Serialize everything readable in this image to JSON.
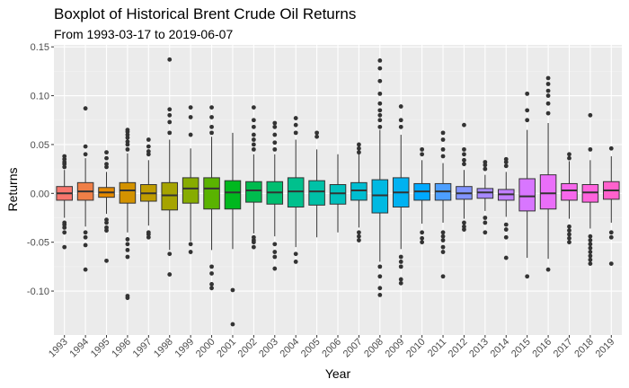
{
  "chart_data": {
    "type": "boxplot",
    "title": "Boxplot of Historical Brent Crude Oil Returns",
    "subtitle": "From 1993-03-17 to 2019-06-07",
    "xlabel": "Year",
    "ylabel": "Returns",
    "ylim": [
      -0.145,
      0.152
    ],
    "yticks": [
      -0.1,
      -0.05,
      0.0,
      0.05,
      0.1,
      0.15
    ],
    "ytick_labels": [
      "-0.10",
      "-0.05",
      "0.00",
      "0.05",
      "0.10",
      "0.15"
    ],
    "grid": true,
    "legend": "none",
    "categories": [
      "1993",
      "1994",
      "1995",
      "1996",
      "1997",
      "1998",
      "1999",
      "2000",
      "2001",
      "2002",
      "2003",
      "2004",
      "2005",
      "2006",
      "2007",
      "2008",
      "2009",
      "2010",
      "2011",
      "2012",
      "2013",
      "2014",
      "2015",
      "2016",
      "2017",
      "2018",
      "2019"
    ],
    "boxes": [
      {
        "year": "1993",
        "color": "#F8766D",
        "q1": -0.007,
        "median": 0.0,
        "q3": 0.007,
        "whisker_low": -0.025,
        "whisker_high": 0.024,
        "outliers": [
          -0.055,
          -0.04,
          -0.035,
          -0.032,
          -0.03,
          0.027,
          0.03,
          0.032,
          0.035,
          0.038
        ]
      },
      {
        "year": "1994",
        "color": "#EF7F47",
        "q1": -0.007,
        "median": 0.002,
        "q3": 0.011,
        "whisker_low": -0.034,
        "whisker_high": 0.036,
        "outliers": [
          -0.078,
          -0.053,
          -0.045,
          -0.04,
          0.04,
          0.048,
          0.087
        ]
      },
      {
        "year": "1995",
        "color": "#E38900",
        "q1": -0.004,
        "median": 0.001,
        "q3": 0.006,
        "whisker_low": -0.021,
        "whisker_high": 0.022,
        "outliers": [
          -0.069,
          -0.038,
          -0.035,
          -0.03,
          -0.027,
          0.027,
          0.03,
          0.036,
          0.042
        ]
      },
      {
        "year": "1996",
        "color": "#D39200",
        "q1": -0.01,
        "median": 0.003,
        "q3": 0.011,
        "whisker_low": -0.04,
        "whisker_high": 0.041,
        "outliers": [
          -0.107,
          -0.105,
          -0.065,
          -0.058,
          -0.052,
          -0.047,
          0.045,
          0.05,
          0.053,
          0.057,
          0.06,
          0.063,
          0.065
        ]
      },
      {
        "year": "1997",
        "color": "#BF9C00",
        "q1": -0.008,
        "median": 0.0,
        "q3": 0.009,
        "whisker_low": -0.033,
        "whisker_high": 0.034,
        "outliers": [
          -0.045,
          -0.042,
          -0.04,
          0.04,
          0.043,
          0.048,
          0.055
        ]
      },
      {
        "year": "1998",
        "color": "#A6A400",
        "q1": -0.017,
        "median": -0.002,
        "q3": 0.011,
        "whisker_low": -0.058,
        "whisker_high": 0.055,
        "outliers": [
          -0.083,
          -0.062,
          0.062,
          0.073,
          0.08,
          0.086,
          0.137
        ]
      },
      {
        "year": "1999",
        "color": "#87AC00",
        "q1": -0.01,
        "median": 0.005,
        "q3": 0.016,
        "whisker_low": -0.049,
        "whisker_high": 0.046,
        "outliers": [
          -0.06,
          -0.052,
          0.06,
          0.078,
          0.088
        ]
      },
      {
        "year": "2000",
        "color": "#5AB300",
        "q1": -0.016,
        "median": 0.005,
        "q3": 0.016,
        "whisker_low": -0.058,
        "whisker_high": 0.058,
        "outliers": [
          -0.097,
          -0.093,
          -0.082,
          -0.075,
          0.062,
          0.068,
          0.078,
          0.088
        ]
      },
      {
        "year": "2001",
        "color": "#00B81F",
        "q1": -0.016,
        "median": 0.001,
        "q3": 0.013,
        "whisker_low": -0.057,
        "whisker_high": 0.062,
        "outliers": [
          -0.134,
          -0.099
        ]
      },
      {
        "year": "2002",
        "color": "#00BB4E",
        "q1": -0.009,
        "median": 0.003,
        "q3": 0.012,
        "whisker_low": -0.041,
        "whisker_high": 0.04,
        "outliers": [
          -0.055,
          -0.05,
          -0.048,
          -0.045,
          0.045,
          0.05,
          0.055,
          0.06,
          0.068,
          0.075,
          0.088
        ]
      },
      {
        "year": "2003",
        "color": "#00BE70",
        "q1": -0.011,
        "median": 0.001,
        "q3": 0.012,
        "whisker_low": -0.044,
        "whisker_high": 0.04,
        "outliers": [
          -0.077,
          -0.065,
          -0.06,
          -0.052,
          0.045,
          0.052,
          0.06,
          0.068,
          0.072
        ]
      },
      {
        "year": "2004",
        "color": "#00C08D",
        "q1": -0.014,
        "median": 0.002,
        "q3": 0.016,
        "whisker_low": -0.055,
        "whisker_high": 0.055,
        "outliers": [
          -0.07,
          -0.062,
          0.062,
          0.07,
          0.077
        ]
      },
      {
        "year": "2005",
        "color": "#00C1A7",
        "q1": -0.012,
        "median": 0.002,
        "q3": 0.013,
        "whisker_low": -0.045,
        "whisker_high": 0.045,
        "outliers": [
          0.058,
          0.062
        ]
      },
      {
        "year": "2006",
        "color": "#00C0BD",
        "q1": -0.011,
        "median": 0.0,
        "q3": 0.009,
        "whisker_low": -0.04,
        "whisker_high": 0.04,
        "outliers": []
      },
      {
        "year": "2007",
        "color": "#00BDD1",
        "q1": -0.007,
        "median": 0.003,
        "q3": 0.011,
        "whisker_low": -0.035,
        "whisker_high": 0.04,
        "outliers": [
          -0.048,
          -0.044,
          -0.04,
          0.042,
          0.046,
          0.05
        ]
      },
      {
        "year": "2008",
        "color": "#00B9E2",
        "q1": -0.02,
        "median": -0.002,
        "q3": 0.014,
        "whisker_low": -0.07,
        "whisker_high": 0.065,
        "outliers": [
          -0.104,
          -0.097,
          -0.085,
          -0.075,
          0.068,
          0.075,
          0.08,
          0.085,
          0.092,
          0.102,
          0.115,
          0.128,
          0.136
        ]
      },
      {
        "year": "2009",
        "color": "#00B2F1",
        "q1": -0.014,
        "median": 0.001,
        "q3": 0.016,
        "whisker_low": -0.057,
        "whisker_high": 0.06,
        "outliers": [
          -0.092,
          -0.088,
          -0.075,
          -0.07,
          -0.065,
          0.068,
          0.075,
          0.089
        ]
      },
      {
        "year": "2010",
        "color": "#00A9FF",
        "q1": -0.007,
        "median": 0.002,
        "q3": 0.01,
        "whisker_low": -0.031,
        "whisker_high": 0.034,
        "outliers": [
          -0.05,
          -0.046,
          -0.04,
          0.04,
          0.045
        ]
      },
      {
        "year": "2011",
        "color": "#4D9FFF",
        "q1": -0.007,
        "median": 0.002,
        "q3": 0.01,
        "whisker_low": -0.03,
        "whisker_high": 0.031,
        "outliers": [
          -0.085,
          -0.06,
          -0.055,
          -0.048,
          -0.044,
          -0.04,
          0.038,
          0.045,
          0.055,
          0.062
        ]
      },
      {
        "year": "2012",
        "color": "#8294FF",
        "q1": -0.006,
        "median": 0.0,
        "q3": 0.007,
        "whisker_low": -0.026,
        "whisker_high": 0.024,
        "outliers": [
          -0.037,
          -0.034,
          -0.03,
          0.03,
          0.034,
          0.04,
          0.045,
          0.07
        ]
      },
      {
        "year": "2013",
        "color": "#A789FF",
        "q1": -0.005,
        "median": 0.001,
        "q3": 0.005,
        "whisker_low": -0.018,
        "whisker_high": 0.019,
        "outliers": [
          -0.04,
          -0.03,
          -0.025,
          0.025,
          0.029,
          0.032
        ]
      },
      {
        "year": "2014",
        "color": "#C27FFF",
        "q1": -0.007,
        "median": -0.001,
        "q3": 0.004,
        "whisker_low": -0.024,
        "whisker_high": 0.022,
        "outliers": [
          -0.066,
          -0.045,
          -0.037,
          -0.032,
          0.028,
          0.032,
          0.035
        ]
      },
      {
        "year": "2015",
        "color": "#D876FF",
        "q1": -0.018,
        "median": -0.003,
        "q3": 0.015,
        "whisker_low": -0.066,
        "whisker_high": 0.065,
        "outliers": [
          -0.085,
          0.075,
          0.085,
          0.102
        ]
      },
      {
        "year": "2016",
        "color": "#EA6EF9",
        "q1": -0.016,
        "median": 0.0,
        "q3": 0.019,
        "whisker_low": -0.067,
        "whisker_high": 0.072,
        "outliers": [
          -0.078,
          0.082,
          0.092,
          0.1,
          0.105,
          0.112,
          0.118
        ]
      },
      {
        "year": "2017",
        "color": "#F767EC",
        "q1": -0.007,
        "median": 0.003,
        "q3": 0.01,
        "whisker_low": -0.026,
        "whisker_high": 0.033,
        "outliers": [
          -0.05,
          -0.046,
          -0.042,
          -0.038,
          -0.034,
          0.036,
          0.04
        ]
      },
      {
        "year": "2018",
        "color": "#FF63DD",
        "q1": -0.009,
        "median": 0.001,
        "q3": 0.009,
        "whisker_low": -0.036,
        "whisker_high": 0.034,
        "outliers": [
          -0.072,
          -0.068,
          -0.064,
          -0.06,
          -0.056,
          -0.052,
          -0.048,
          -0.044,
          0.045,
          0.08
        ]
      },
      {
        "year": "2019",
        "color": "#FF61CC",
        "q1": -0.006,
        "median": 0.003,
        "q3": 0.012,
        "whisker_low": -0.03,
        "whisker_high": 0.038,
        "outliers": [
          -0.072,
          -0.045,
          -0.04,
          0.046
        ]
      }
    ]
  }
}
